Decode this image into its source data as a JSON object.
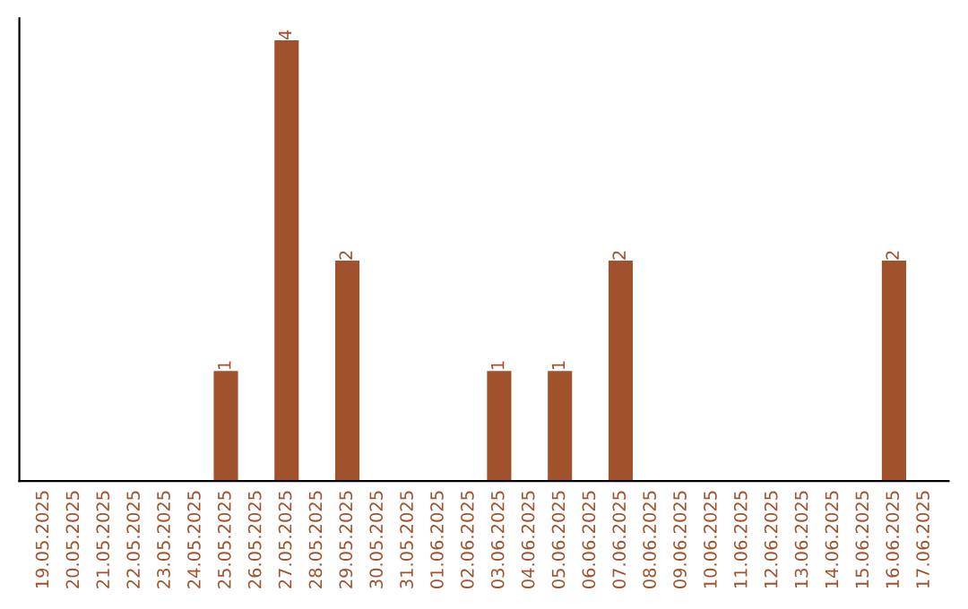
{
  "chart_data": {
    "type": "bar",
    "categories": [
      "19.05.2025",
      "20.05.2025",
      "21.05.2025",
      "22.05.2025",
      "23.05.2025",
      "24.05.2025",
      "25.05.2025",
      "26.05.2025",
      "27.05.2025",
      "28.05.2025",
      "29.05.2025",
      "30.05.2025",
      "31.05.2025",
      "01.06.2025",
      "02.06.2025",
      "03.06.2025",
      "04.06.2025",
      "05.06.2025",
      "06.06.2025",
      "07.06.2025",
      "08.06.2025",
      "09.06.2025",
      "10.06.2025",
      "11.06.2025",
      "12.06.2025",
      "13.06.2025",
      "14.06.2025",
      "15.06.2025",
      "16.06.2025",
      "17.06.2025"
    ],
    "values": [
      0,
      0,
      0,
      0,
      0,
      0,
      1,
      0,
      4,
      0,
      2,
      0,
      0,
      0,
      0,
      1,
      0,
      1,
      0,
      2,
      0,
      0,
      0,
      0,
      0,
      0,
      0,
      0,
      2,
      0
    ],
    "value_labels": [
      null,
      null,
      null,
      null,
      null,
      null,
      "1",
      null,
      "4",
      null,
      "2",
      null,
      null,
      null,
      null,
      "1",
      null,
      "1",
      null,
      "2",
      null,
      null,
      null,
      null,
      null,
      null,
      null,
      null,
      "2",
      null
    ],
    "color": "#a0522d",
    "tick_labels": "x",
    "grid": false,
    "legend": false
  }
}
